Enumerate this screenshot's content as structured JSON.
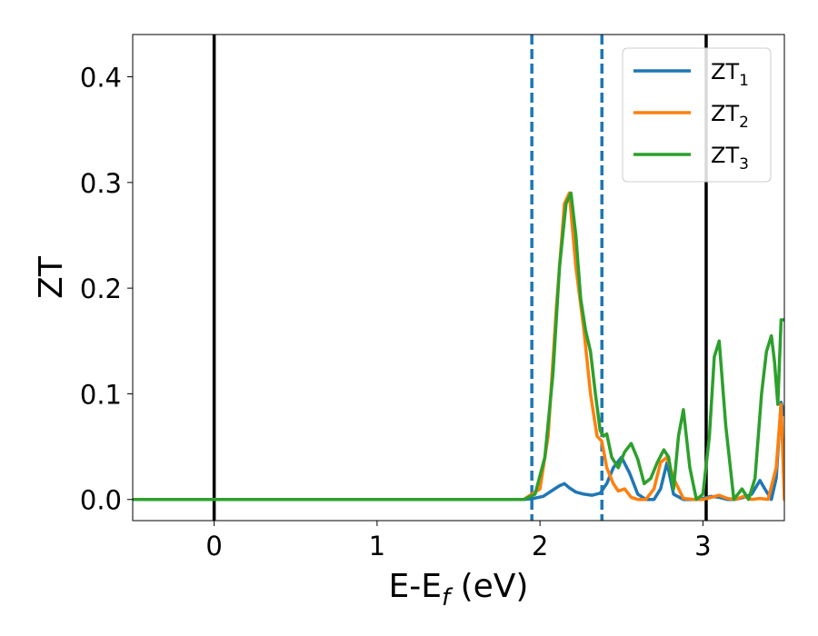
{
  "chart_data": {
    "type": "line",
    "title": "",
    "xlabel": {
      "base": "E-E",
      "sub": "f",
      "unit": " (eV)"
    },
    "ylabel": "ZT",
    "xlim": [
      -0.5,
      3.5
    ],
    "ylim": [
      -0.02,
      0.44
    ],
    "xticks": [
      0,
      1,
      2,
      3
    ],
    "yticks": [
      0.0,
      0.1,
      0.2,
      0.3,
      0.4
    ],
    "xtick_labels": [
      "0",
      "1",
      "2",
      "3"
    ],
    "ytick_labels": [
      "0.0",
      "0.1",
      "0.2",
      "0.3",
      "0.4"
    ],
    "grid": false,
    "legend": {
      "position": "top-right"
    },
    "vertical_lines": [
      {
        "x": 0.0,
        "style": "solid",
        "color": "#000000"
      },
      {
        "x": 1.95,
        "style": "dashed",
        "color": "#1f77b4"
      },
      {
        "x": 2.38,
        "style": "dashed",
        "color": "#1f77b4"
      },
      {
        "x": 3.02,
        "style": "solid",
        "color": "#000000"
      }
    ],
    "series": [
      {
        "name": "ZT",
        "sub": "1",
        "color": "#1f77b4",
        "x": [
          -0.5,
          1.9,
          1.96,
          2.02,
          2.07,
          2.12,
          2.15,
          2.18,
          2.22,
          2.27,
          2.32,
          2.37,
          2.41,
          2.45,
          2.5,
          2.55,
          2.6,
          2.65,
          2.7,
          2.74,
          2.78,
          2.82,
          2.88,
          2.95,
          3.0,
          3.05,
          3.1,
          3.15,
          3.2,
          3.25,
          3.3,
          3.35,
          3.38,
          3.42,
          3.45,
          3.48,
          3.5
        ],
        "y": [
          0.0,
          0.0,
          0.001,
          0.003,
          0.008,
          0.013,
          0.015,
          0.011,
          0.007,
          0.005,
          0.004,
          0.006,
          0.015,
          0.03,
          0.04,
          0.025,
          0.005,
          0.0,
          0.0,
          0.01,
          0.035,
          0.005,
          0.0,
          0.0,
          0.001,
          0.003,
          0.002,
          0.0,
          0.0,
          0.002,
          0.005,
          0.018,
          0.01,
          0.0,
          0.02,
          0.092,
          0.08
        ]
      },
      {
        "name": "ZT",
        "sub": "2",
        "color": "#ff7f0e",
        "x": [
          -0.5,
          1.9,
          2.0,
          2.05,
          2.1,
          2.15,
          2.18,
          2.22,
          2.27,
          2.31,
          2.35,
          2.38,
          2.41,
          2.45,
          2.48,
          2.52,
          2.56,
          2.6,
          2.65,
          2.7,
          2.74,
          2.78,
          2.82,
          2.88,
          2.95,
          3.0,
          3.05,
          3.1,
          3.15,
          3.2,
          3.25,
          3.3,
          3.35,
          3.4,
          3.45,
          3.48,
          3.5
        ],
        "y": [
          0.0,
          0.0,
          0.01,
          0.06,
          0.18,
          0.28,
          0.29,
          0.22,
          0.16,
          0.1,
          0.06,
          0.055,
          0.03,
          0.015,
          0.008,
          0.01,
          0.002,
          0.0,
          0.0,
          0.01,
          0.035,
          0.04,
          0.02,
          0.001,
          0.0,
          0.0,
          0.002,
          0.004,
          0.001,
          0.0,
          0.003,
          0.0,
          0.001,
          0.0,
          0.03,
          0.09,
          0.0
        ]
      },
      {
        "name": "ZT",
        "sub": "3",
        "color": "#2ca02c",
        "x": [
          -0.5,
          1.9,
          1.97,
          2.03,
          2.08,
          2.12,
          2.16,
          2.19,
          2.22,
          2.25,
          2.28,
          2.31,
          2.34,
          2.37,
          2.39,
          2.41,
          2.44,
          2.48,
          2.52,
          2.56,
          2.6,
          2.64,
          2.68,
          2.72,
          2.76,
          2.79,
          2.82,
          2.85,
          2.88,
          2.92,
          2.96,
          3.0,
          3.04,
          3.07,
          3.1,
          3.14,
          3.19,
          3.24,
          3.28,
          3.32,
          3.36,
          3.39,
          3.42,
          3.44,
          3.46,
          3.48,
          3.5
        ],
        "y": [
          0.0,
          0.0,
          0.005,
          0.04,
          0.12,
          0.22,
          0.28,
          0.29,
          0.25,
          0.19,
          0.16,
          0.14,
          0.1,
          0.065,
          0.06,
          0.062,
          0.04,
          0.03,
          0.045,
          0.053,
          0.038,
          0.015,
          0.02,
          0.035,
          0.047,
          0.04,
          0.01,
          0.06,
          0.085,
          0.03,
          0.0,
          0.005,
          0.06,
          0.135,
          0.15,
          0.07,
          0.0,
          0.01,
          0.0,
          0.02,
          0.1,
          0.14,
          0.155,
          0.13,
          0.09,
          0.17,
          0.17
        ]
      }
    ]
  }
}
